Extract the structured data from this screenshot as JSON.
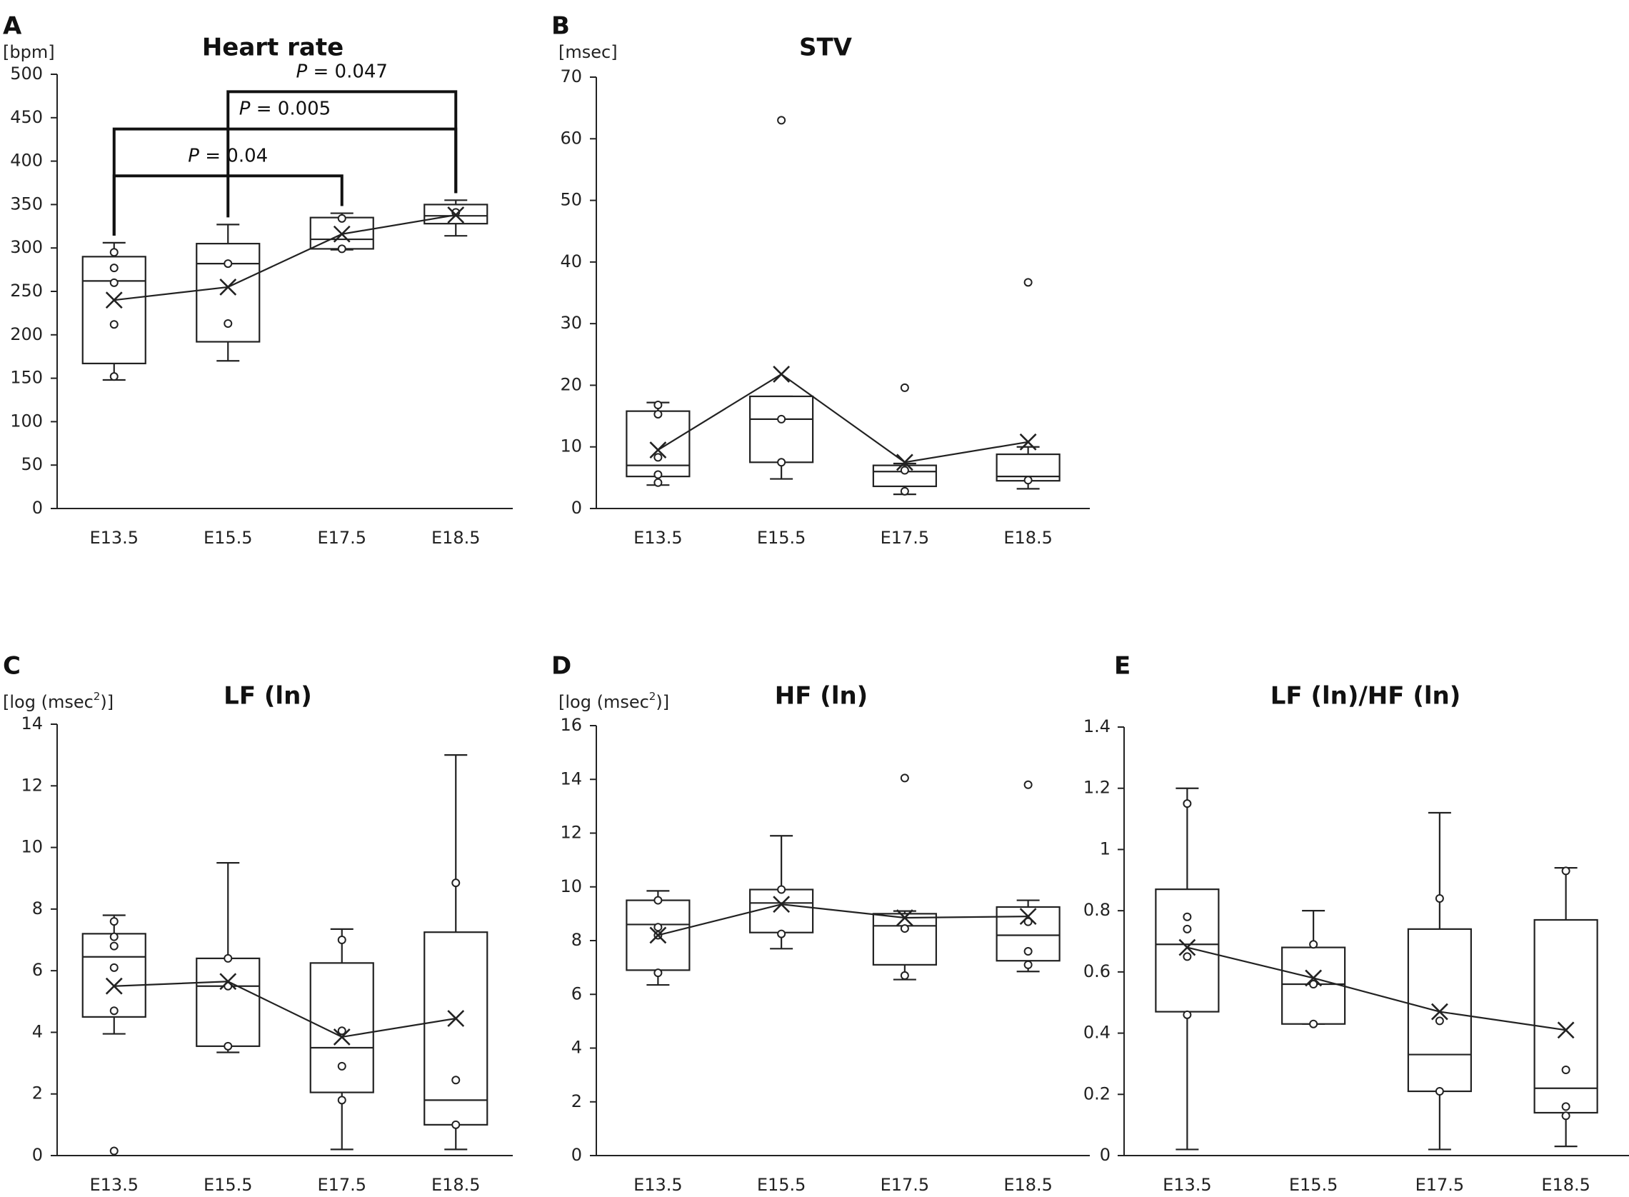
{
  "figure": {
    "panels_order": [
      "A",
      "B",
      "C",
      "D",
      "E"
    ]
  },
  "chart_data": [
    {
      "id": "A",
      "type": "box",
      "letter": "A",
      "title": "Heart rate",
      "unit": "[bpm]",
      "unit_sup": "",
      "unit_suffix": "",
      "categories": [
        "E13.5",
        "E15.5",
        "E17.5",
        "E18.5"
      ],
      "ylim": [
        0,
        500
      ],
      "yticks": [
        0,
        50,
        100,
        150,
        200,
        250,
        300,
        350,
        400,
        450,
        500
      ],
      "ytick_labels": [
        "0",
        "50",
        "100",
        "150",
        "200",
        "250",
        "300",
        "350",
        "400",
        "450",
        "500"
      ],
      "boxes": [
        {
          "min": 148,
          "q1": 167,
          "median": 262,
          "q3": 290,
          "max": 306,
          "mean": 240,
          "points": [
            152,
            212,
            260,
            277,
            295
          ]
        },
        {
          "min": 170,
          "q1": 192,
          "median": 282,
          "q3": 305,
          "max": 327,
          "mean": 255,
          "points": [
            213,
            282
          ]
        },
        {
          "min": 298,
          "q1": 299,
          "median": 310,
          "q3": 335,
          "max": 340,
          "mean": 316,
          "points": [
            299,
            334
          ]
        },
        {
          "min": 314,
          "q1": 328,
          "median": 337,
          "q3": 350,
          "max": 355,
          "mean": 338,
          "points": [
            341
          ]
        }
      ],
      "significance": [
        {
          "from": "E13.5",
          "to": "E17.5",
          "y": 383,
          "label_prefix": "P",
          "label_value": " = 0.04"
        },
        {
          "from": "E13.5",
          "to": "E18.5",
          "y": 437,
          "label_prefix": "P",
          "label_value": " = 0.005"
        },
        {
          "from": "E15.5",
          "to": "E18.5",
          "y": 480,
          "label_prefix": "P",
          "label_value": " = 0.047"
        }
      ]
    },
    {
      "id": "B",
      "type": "box",
      "letter": "B",
      "title": "STV",
      "unit": "[msec]",
      "unit_sup": "",
      "unit_suffix": "",
      "categories": [
        "E13.5",
        "E15.5",
        "E17.5",
        "E18.5"
      ],
      "ylim": [
        0,
        70
      ],
      "yticks": [
        0,
        10,
        20,
        30,
        40,
        50,
        60,
        70
      ],
      "ytick_labels": [
        "0",
        "10",
        "20",
        "30",
        "40",
        "50",
        "60",
        "70"
      ],
      "boxes": [
        {
          "min": 3.8,
          "q1": 5.2,
          "median": 7.0,
          "q3": 15.8,
          "max": 17.2,
          "mean": 9.5,
          "points": [
            4.2,
            5.5,
            8.3,
            15.3,
            16.8
          ]
        },
        {
          "min": 4.8,
          "q1": 7.5,
          "median": 14.5,
          "q3": 18.2,
          "max": 18.2,
          "mean": 21.8,
          "points": [
            7.5,
            14.5,
            63.0
          ]
        },
        {
          "min": 2.3,
          "q1": 3.6,
          "median": 6.0,
          "q3": 7.0,
          "max": 7.3,
          "mean": 7.5,
          "points": [
            2.8,
            6.2,
            19.6
          ]
        },
        {
          "min": 3.2,
          "q1": 4.5,
          "median": 5.2,
          "q3": 8.8,
          "max": 10.0,
          "mean": 10.8,
          "points": [
            4.6,
            36.7
          ]
        }
      ],
      "significance": []
    },
    {
      "id": "C",
      "type": "box",
      "letter": "C",
      "title": "LF (ln)",
      "unit": "[log (msec",
      "unit_sup": "2",
      "unit_suffix": ")]",
      "categories": [
        "E13.5",
        "E15.5",
        "E17.5",
        "E18.5"
      ],
      "ylim": [
        0,
        14
      ],
      "yticks": [
        0,
        2,
        4,
        6,
        8,
        10,
        12,
        14
      ],
      "ytick_labels": [
        "0",
        "2",
        "4",
        "6",
        "8",
        "10",
        "12",
        "14"
      ],
      "boxes": [
        {
          "min": 3.95,
          "q1": 4.5,
          "median": 6.45,
          "q3": 7.2,
          "max": 7.8,
          "mean": 5.5,
          "points": [
            0.15,
            4.7,
            6.1,
            6.8,
            7.1,
            7.6
          ]
        },
        {
          "min": 3.35,
          "q1": 3.55,
          "median": 5.5,
          "q3": 6.4,
          "max": 9.5,
          "mean": 5.65,
          "points": [
            3.55,
            5.5,
            6.4
          ]
        },
        {
          "min": 0.2,
          "q1": 2.05,
          "median": 3.5,
          "q3": 6.25,
          "max": 7.35,
          "mean": 3.85,
          "points": [
            1.8,
            2.9,
            4.05,
            7.0
          ]
        },
        {
          "min": 0.2,
          "q1": 1.0,
          "median": 1.8,
          "q3": 7.25,
          "max": 13.0,
          "mean": 4.45,
          "points": [
            1.0,
            2.45,
            8.85
          ]
        }
      ],
      "significance": []
    },
    {
      "id": "D",
      "type": "box",
      "letter": "D",
      "title": "HF (ln)",
      "unit": "[log (msec",
      "unit_sup": "2",
      "unit_suffix": ")]",
      "categories": [
        "E13.5",
        "E15.5",
        "E17.5",
        "E18.5"
      ],
      "ylim": [
        0,
        16
      ],
      "yticks": [
        0,
        2,
        4,
        6,
        8,
        10,
        12,
        14,
        16
      ],
      "ytick_labels": [
        "0",
        "2",
        "4",
        "6",
        "8",
        "10",
        "12",
        "14",
        "16"
      ],
      "boxes": [
        {
          "min": 6.35,
          "q1": 6.9,
          "median": 8.6,
          "q3": 9.5,
          "max": 9.85,
          "mean": 8.2,
          "points": [
            6.8,
            8.2,
            8.5,
            9.5
          ]
        },
        {
          "min": 7.7,
          "q1": 8.3,
          "median": 9.4,
          "q3": 9.9,
          "max": 11.9,
          "mean": 9.35,
          "points": [
            8.25,
            9.9
          ]
        },
        {
          "min": 6.55,
          "q1": 7.1,
          "median": 8.55,
          "q3": 9.0,
          "max": 9.1,
          "mean": 8.85,
          "points": [
            6.7,
            8.45,
            14.05
          ]
        },
        {
          "min": 6.85,
          "q1": 7.25,
          "median": 8.2,
          "q3": 9.25,
          "max": 9.5,
          "mean": 8.9,
          "points": [
            7.1,
            7.6,
            8.7,
            13.8
          ]
        }
      ],
      "significance": []
    },
    {
      "id": "E",
      "type": "box",
      "letter": "E",
      "title": "LF (ln)/HF (ln)",
      "unit": "",
      "unit_sup": "",
      "unit_suffix": "",
      "categories": [
        "E13.5",
        "E15.5",
        "E17.5",
        "E18.5"
      ],
      "ylim": [
        0,
        1.4
      ],
      "yticks": [
        0,
        0.2,
        0.4,
        0.6,
        0.8,
        1.0,
        1.2,
        1.4
      ],
      "ytick_labels": [
        "0",
        "0.2",
        "0.4",
        "0.6",
        "0.8",
        "1",
        "1.2",
        "1.4"
      ],
      "boxes": [
        {
          "min": 0.02,
          "q1": 0.47,
          "median": 0.69,
          "q3": 0.87,
          "max": 1.2,
          "mean": 0.68,
          "points": [
            0.46,
            0.65,
            0.74,
            0.78,
            1.15
          ]
        },
        {
          "min": 0.43,
          "q1": 0.43,
          "median": 0.56,
          "q3": 0.68,
          "max": 0.8,
          "mean": 0.58,
          "points": [
            0.43,
            0.56,
            0.69
          ]
        },
        {
          "min": 0.02,
          "q1": 0.21,
          "median": 0.33,
          "q3": 0.74,
          "max": 1.12,
          "mean": 0.47,
          "points": [
            0.21,
            0.44,
            0.84
          ]
        },
        {
          "min": 0.03,
          "q1": 0.14,
          "median": 0.22,
          "q3": 0.77,
          "max": 0.94,
          "mean": 0.41,
          "points": [
            0.13,
            0.16,
            0.28,
            0.93
          ]
        }
      ],
      "significance": []
    }
  ]
}
